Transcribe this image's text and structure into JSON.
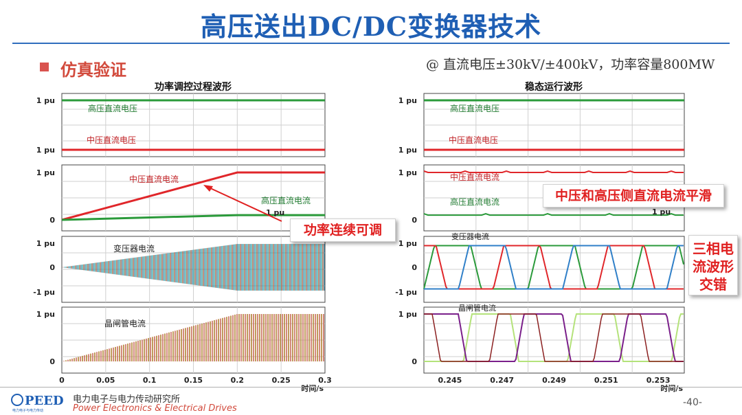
{
  "title": "高压送出DC/DC变换器技术",
  "section": {
    "heading": "仿真验证"
  },
  "condition": "@ 直流电压±30kV/±400kV，功率容量800MW",
  "callouts": {
    "power": "功率连续可调",
    "smooth": "中压和高压侧直流电流平滑",
    "three_phase": [
      "三相电",
      "流波形",
      "交错"
    ]
  },
  "footer": {
    "logo_text": "PEED",
    "logo_sub": "电力电子与电力传动",
    "org_cn": "电力电子与电力传动研究所",
    "org_en": "Power Electronics & Electrical Drives",
    "page": "-40-"
  },
  "colors": {
    "accent_blue": "#1f5fb4",
    "accent_red": "#e02020",
    "green": "#2a9a3a",
    "red": "#e0262a",
    "blue": "#2f7fc8",
    "lime": "#b4e27a",
    "purple": "#7a1f8a",
    "teal": "#1fa0a0"
  },
  "chart_data": [
    {
      "type": "line",
      "title": "功率调控过程波形",
      "x_range": [
        0,
        0.3
      ],
      "xticks": [
        "0",
        "0.05",
        "0.1",
        "0.15",
        "0.2",
        "0.25",
        "0.3"
      ],
      "xlabel": "时间/s",
      "panels": [
        {
          "yticks": [
            "1 pu",
            "1 pu"
          ],
          "series": [
            {
              "name": "高压直流电压",
              "color": "#2a9a3a",
              "x": [
                0,
                0.3
              ],
              "y": [
                1,
                1
              ]
            },
            {
              "name": "中压直流电压",
              "color": "#e0262a",
              "x": [
                0,
                0.3
              ],
              "y": [
                1,
                1
              ]
            }
          ]
        },
        {
          "yticks": [
            "1 pu",
            "0"
          ],
          "series": [
            {
              "name": "中压直流电流",
              "color": "#e0262a",
              "x": [
                0,
                0.2,
                0.3
              ],
              "y": [
                0,
                1,
                1
              ]
            },
            {
              "name": "高压直流电流",
              "color": "#2a9a3a",
              "x": [
                0,
                0.2,
                0.3
              ],
              "y": [
                0,
                0.1,
                0.1
              ]
            }
          ],
          "extra_label": "1 pu"
        },
        {
          "yticks": [
            "1 pu",
            "0",
            "-1 pu"
          ],
          "series": [
            {
              "name": "变压器电流",
              "color": "#1fa0a0",
              "envelope_x": [
                0,
                0.2,
                0.3
              ],
              "envelope_y": [
                0,
                1,
                1
              ]
            }
          ]
        },
        {
          "yticks": [
            "1 pu",
            "0"
          ],
          "series": [
            {
              "name": "晶闸管电流",
              "color": "#b08030",
              "envelope_x": [
                0,
                0.2,
                0.3
              ],
              "envelope_y": [
                0,
                1,
                1
              ]
            }
          ]
        }
      ]
    },
    {
      "type": "line",
      "title": "稳态运行波形",
      "x_range": [
        0.244,
        0.254
      ],
      "xticks": [
        "0.245",
        "0.247",
        "0.249",
        "0.251",
        "0.253"
      ],
      "xlabel": "时间/s",
      "panels": [
        {
          "yticks": [
            "1 pu",
            "1 pu"
          ],
          "series": [
            {
              "name": "高压直流电压",
              "color": "#2a9a3a",
              "y": 1
            },
            {
              "name": "中压直流电压",
              "color": "#e0262a",
              "y": 1
            }
          ]
        },
        {
          "yticks": [
            "1 pu",
            "0"
          ],
          "series": [
            {
              "name": "中压直流电流",
              "color": "#e0262a",
              "y": 1
            },
            {
              "name": "高压直流电流",
              "color": "#2a9a3a",
              "y": 0.1
            }
          ],
          "extra_label": "1 pu"
        },
        {
          "yticks": [
            "1 pu",
            "0",
            "-1 pu"
          ],
          "series": [
            {
              "name": "变压器电流",
              "three_phase": true,
              "colors": [
                "#2a9a3a",
                "#e0262a",
                "#2f7fc8"
              ]
            }
          ]
        },
        {
          "yticks": [
            "1 pu",
            "0"
          ],
          "series": [
            {
              "name": "晶闸管电流",
              "pulses": true,
              "colors": [
                "#b4e27a",
                "#7a1f8a",
                "#8b2020"
              ]
            }
          ]
        }
      ]
    }
  ]
}
